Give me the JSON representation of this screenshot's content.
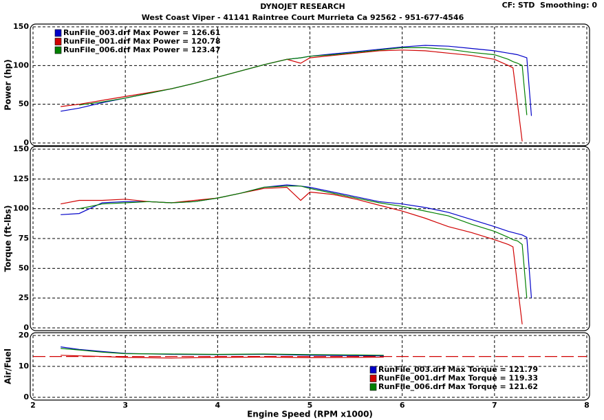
{
  "header": {
    "title": "DYNOJET RESEARCH",
    "subtitle": "West Coast Viper - 41141 Raintree Court Murrieta Ca 92562 - 951-677-4546",
    "settings": "CF: STD  Smoothing: 0"
  },
  "chart_data": [
    {
      "type": "line",
      "ylabel": "Power (hp)",
      "legend": "upper left",
      "grid": true,
      "xlim": [
        2,
        8
      ],
      "xticks": [
        2,
        3,
        4,
        5,
        6,
        7,
        8
      ],
      "ylim": [
        0,
        150
      ],
      "yticks": [
        0,
        50,
        100,
        150
      ],
      "x": [
        2.3,
        2.5,
        2.75,
        3,
        3.25,
        3.5,
        3.75,
        4,
        4.25,
        4.5,
        4.75,
        4.9,
        5,
        5.25,
        5.5,
        5.75,
        6,
        6.25,
        6.5,
        6.75,
        7,
        7.15,
        7.2,
        7.25,
        7.3,
        7.35,
        7.4
      ],
      "series": [
        {
          "name": "RunFile_003.drf Max Power = 126.61",
          "color": "#0000c8",
          "values": [
            41,
            45,
            52,
            58,
            64,
            70,
            77,
            85,
            93,
            101,
            108,
            110,
            112,
            115,
            118,
            121,
            124,
            126,
            125,
            122,
            119,
            116,
            115,
            114,
            112,
            110,
            35
          ]
        },
        {
          "name": "RunFile_001.drf Max Power = 120.78",
          "color": "#d00000",
          "values": [
            47,
            50,
            55,
            60,
            65,
            70,
            77,
            85,
            93,
            101,
            108,
            103,
            110,
            113,
            116,
            119,
            120,
            119,
            116,
            113,
            108,
            100,
            97,
            50,
            2,
            null,
            null
          ]
        },
        {
          "name": "RunFile_006.drf Max Power = 123.47",
          "color": "#008000",
          "values": [
            null,
            49,
            53,
            58,
            64,
            70,
            77,
            85,
            93,
            101,
            108,
            110,
            112,
            114,
            117,
            120,
            123,
            123,
            121,
            117,
            114,
            108,
            105,
            103,
            100,
            36,
            null
          ]
        }
      ]
    },
    {
      "type": "line",
      "ylabel": "Torque (ft-lbs)",
      "grid": true,
      "xlim": [
        2,
        8
      ],
      "xticks": [
        2,
        3,
        4,
        5,
        6,
        7,
        8
      ],
      "ylim": [
        0,
        150
      ],
      "yticks": [
        0,
        25,
        50,
        75,
        100,
        125,
        150
      ],
      "x": [
        2.3,
        2.5,
        2.75,
        3,
        3.25,
        3.5,
        3.75,
        4,
        4.25,
        4.5,
        4.75,
        4.9,
        5,
        5.25,
        5.5,
        5.75,
        6,
        6.25,
        6.5,
        6.75,
        7,
        7.15,
        7.2,
        7.25,
        7.3,
        7.35,
        7.4
      ],
      "series": [
        {
          "color": "#0000c8",
          "values": [
            95,
            96,
            105,
            106,
            106,
            105,
            106,
            109,
            113,
            118,
            120,
            119,
            118,
            114,
            110,
            106,
            104,
            101,
            97,
            91,
            85,
            81,
            80,
            79,
            78,
            76,
            25
          ]
        },
        {
          "color": "#d00000",
          "values": [
            104,
            107,
            107,
            108,
            106,
            105,
            107,
            109,
            113,
            117,
            118,
            107,
            114,
            112,
            108,
            103,
            98,
            92,
            85,
            80,
            74,
            70,
            68,
            35,
            3,
            null,
            null
          ]
        },
        {
          "color": "#008000",
          "values": [
            null,
            100,
            104,
            105,
            106,
            105,
            106,
            109,
            113,
            118,
            119,
            119,
            117,
            113,
            109,
            105,
            102,
            98,
            94,
            87,
            81,
            76,
            74,
            73,
            70,
            25,
            null
          ]
        }
      ]
    },
    {
      "type": "line",
      "ylabel": "Air/Fuel",
      "xlabel": "Engine Speed (RPM x1000)",
      "legend": "center right",
      "grid": true,
      "xlim": [
        2,
        8
      ],
      "xticks": [
        2,
        3,
        4,
        5,
        6,
        7,
        8
      ],
      "ylim": [
        0,
        20
      ],
      "yticks": [
        0,
        10,
        20
      ],
      "reference_line": {
        "value": 13.2,
        "color": "#d00000"
      },
      "x": [
        2.3,
        2.5,
        2.75,
        3,
        3.5,
        4,
        4.5,
        5,
        5.5,
        5.8
      ],
      "series": [
        {
          "name": "RunFile_003.drf Max Torque = 121.79",
          "color": "#0000c8",
          "values": [
            16.3,
            15.5,
            14.8,
            14.2,
            13.9,
            13.8,
            13.9,
            13.6,
            13.5,
            13.4
          ]
        },
        {
          "name": "RunFile_001.drf Max Torque = 119.33",
          "color": "#d00000",
          "values": [
            13.6,
            13.4,
            13.2,
            12.9,
            12.7,
            12.9,
            13,
            12.8,
            12.9,
            13
          ]
        },
        {
          "name": "RunFile_006.drf Max Torque = 121.62",
          "color": "#008000",
          "values": [
            15.8,
            15.3,
            14.6,
            14.1,
            14,
            13.9,
            14,
            13.8,
            13.7,
            13.6
          ]
        }
      ]
    }
  ]
}
